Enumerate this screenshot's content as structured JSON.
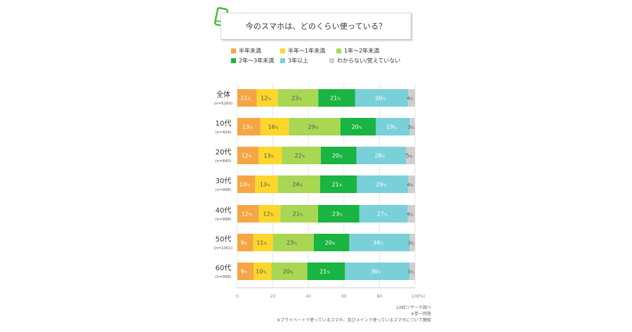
{
  "title": "今のスマホは、どのくらい使っている？",
  "colors": {
    "series": [
      "#f6a544",
      "#fcd62b",
      "#a9d653",
      "#19b441",
      "#79d0d9",
      "#cfcfcf"
    ],
    "label_dark": "#ffffff",
    "label_light": "#555555"
  },
  "chart_data": {
    "type": "bar",
    "orientation": "horizontal",
    "stacked": true,
    "categories": [
      "全体",
      "10代",
      "20代",
      "30代",
      "40代",
      "50代",
      "60代"
    ],
    "sample_sizes": [
      "(n=5260)",
      "(n=424)",
      "(n=840)",
      "(n=998)",
      "(n=998)",
      "(n=1001)",
      "(n=999)"
    ],
    "series": [
      {
        "name": "半年未満",
        "values": [
          11,
          13,
          12,
          10,
          12,
          9,
          9
        ]
      },
      {
        "name": "半年～1年未満",
        "values": [
          12,
          16,
          13,
          13,
          12,
          11,
          10
        ]
      },
      {
        "name": "1年～2年未満",
        "values": [
          23,
          29,
          22,
          24,
          21,
          23,
          20
        ]
      },
      {
        "name": "2年～3年未満",
        "values": [
          21,
          20,
          20,
          21,
          23,
          20,
          21
        ]
      },
      {
        "name": "3年以上",
        "values": [
          30,
          19,
          28,
          29,
          27,
          34,
          36
        ]
      },
      {
        "name": "わからない/覚えていない",
        "values": [
          4,
          3,
          5,
          4,
          4,
          3,
          3
        ]
      }
    ],
    "value_unit": "%",
    "xlim": [
      0,
      100
    ],
    "xticks": [
      0,
      20,
      40,
      60,
      80,
      100
    ],
    "xunit": "(%)",
    "grid": true,
    "legend_position": "top"
  },
  "notes": [
    "LINEリサーチ調べ",
    "※単一回答",
    "※プライベートで使っているスマホ、及びメインで使っているスマホについて聴取"
  ]
}
